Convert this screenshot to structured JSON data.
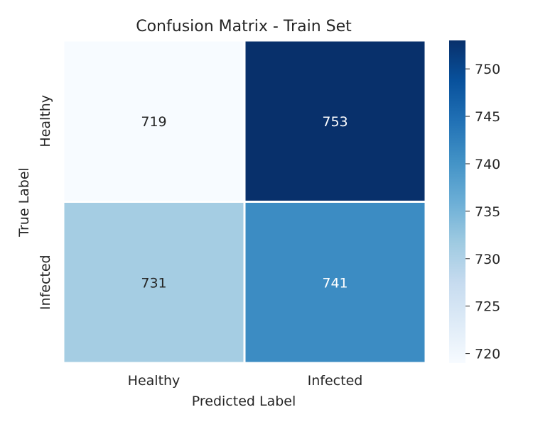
{
  "chart_data": {
    "type": "heatmap",
    "title": "Confusion Matrix - Train Set",
    "xlabel": "Predicted Label",
    "ylabel": "True Label",
    "x_categories": [
      "Healthy",
      "Infected"
    ],
    "y_categories": [
      "Healthy",
      "Infected"
    ],
    "values": [
      [
        719,
        753
      ],
      [
        731,
        741
      ]
    ],
    "colorbar": {
      "range": [
        719,
        753
      ],
      "ticks": [
        720,
        725,
        730,
        735,
        740,
        745,
        750
      ],
      "colormap": "Blues"
    },
    "colors": {
      "low": "#f7fbff",
      "high": "#08306b",
      "dark_text": "#262626",
      "light_text": "#ffffff"
    }
  }
}
